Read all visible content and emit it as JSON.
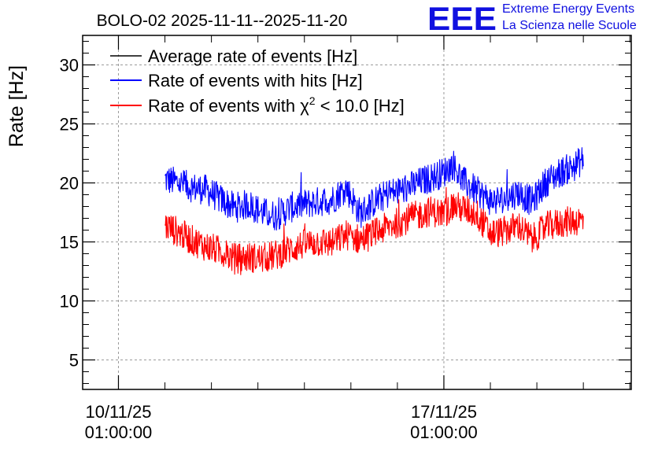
{
  "chart_data": {
    "type": "line",
    "title": "BOLO-02 2025-11-11--2025-11-20",
    "xlabel": "",
    "ylabel": "Rate [Hz]",
    "ylim": [
      2.5,
      32.5
    ],
    "yticks": [
      5,
      10,
      15,
      20,
      25,
      30
    ],
    "xlim_days": [
      -0.77,
      11.03
    ],
    "xticks": [
      {
        "day": 0,
        "line1": "10/11/25",
        "line2": "01:00:00"
      },
      {
        "day": 7,
        "line1": "17/11/25",
        "line2": "01:00:00"
      }
    ],
    "grid": true,
    "legend_position": "top-left",
    "legend": [
      {
        "label": "Average rate of events [Hz]",
        "color": "#000000"
      },
      {
        "label": "Rate of events with hits [Hz]",
        "color": "#0000ff"
      },
      {
        "label_prefix": "Rate of events with ",
        "label_chi": "χ",
        "label_sup": "2",
        "label_suffix": " < 10.0 [Hz]",
        "color": "#ff0000"
      }
    ],
    "series": [
      {
        "name": "Rate of events with hits [Hz]",
        "color": "#0000ff",
        "x_days": [
          1.0,
          1.3,
          1.6,
          1.9,
          2.2,
          2.5,
          2.8,
          3.1,
          3.4,
          3.7,
          4.0,
          4.3,
          4.6,
          4.9,
          5.2,
          5.5,
          5.8,
          6.1,
          6.4,
          6.7,
          7.0,
          7.2,
          7.4,
          7.7,
          8.0,
          8.3,
          8.6,
          8.9,
          9.2,
          9.5,
          9.8,
          10.0
        ],
        "values": [
          20.3,
          20.0,
          19.6,
          19.4,
          18.6,
          17.9,
          18.2,
          17.5,
          17.2,
          17.9,
          18.2,
          18.4,
          18.6,
          19.6,
          17.4,
          18.4,
          19.1,
          19.4,
          19.9,
          20.4,
          20.9,
          21.6,
          20.2,
          19.3,
          18.5,
          18.6,
          19.2,
          18.4,
          20.1,
          20.9,
          21.4,
          22.0
        ],
        "noise_band": 1.3
      },
      {
        "name": "Rate of events with χ2 < 10.0 [Hz]",
        "color": "#ff0000",
        "x_days": [
          1.0,
          1.3,
          1.6,
          1.9,
          2.2,
          2.5,
          2.8,
          3.1,
          3.4,
          3.7,
          4.0,
          4.3,
          4.6,
          4.9,
          5.2,
          5.5,
          5.8,
          6.1,
          6.4,
          6.7,
          7.0,
          7.2,
          7.4,
          7.7,
          8.0,
          8.3,
          8.6,
          8.9,
          9.2,
          9.5,
          9.8,
          10.0
        ],
        "values": [
          16.4,
          15.8,
          15.1,
          14.6,
          14.2,
          13.6,
          13.7,
          13.6,
          13.9,
          14.4,
          14.8,
          15.0,
          14.9,
          15.6,
          15.2,
          15.7,
          16.3,
          16.8,
          17.2,
          17.6,
          17.4,
          18.1,
          17.8,
          17.4,
          15.7,
          15.9,
          16.4,
          15.2,
          16.3,
          16.6,
          16.8,
          16.8
        ],
        "noise_band": 1.3
      }
    ]
  },
  "logo": {
    "letters": "EEE",
    "line1": "Extreme Energy Events",
    "line2": "La Scienza nelle Scuole",
    "color": "#1010e0"
  }
}
